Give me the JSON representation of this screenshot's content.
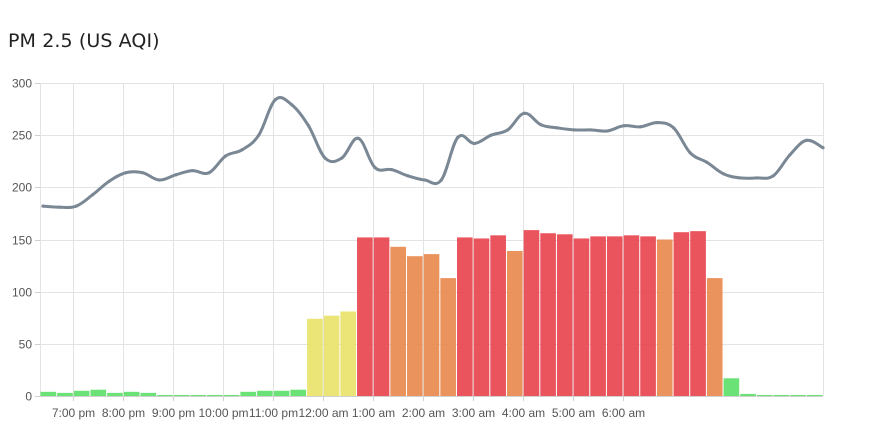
{
  "chart_data": {
    "title": "PM 2.5 (US AQI)",
    "type": "bar+line",
    "ylim": [
      0,
      300
    ],
    "yticks": [
      0,
      50,
      100,
      150,
      200,
      250,
      300
    ],
    "xticks": [
      "7:00 pm",
      "8:00 pm",
      "9:00 pm",
      "10:00 pm",
      "11:00 pm",
      "12:00 am",
      "1:00 am",
      "2:00 am",
      "3:00 am",
      "4:00 am",
      "5:00 am",
      "6:00 am"
    ],
    "grid": true,
    "colors": {
      "good": "#5ee06a",
      "moderate": "#e8e36a",
      "sensitive": "#e98a4f",
      "unhealthy": "#e8474f",
      "line": "#7a8794",
      "grid": "#e3e3e3",
      "axis": "#cfcfcf"
    },
    "bars": [
      4,
      3,
      5,
      6,
      3,
      4,
      3,
      1,
      1,
      1,
      1,
      1,
      4,
      5,
      5,
      6,
      74,
      77,
      81,
      152,
      152,
      143,
      134,
      136,
      113,
      152,
      151,
      154,
      139,
      159,
      156,
      155,
      151,
      153,
      153,
      154,
      153,
      150,
      157,
      158,
      113,
      17,
      2,
      1,
      1,
      1,
      1
    ],
    "line": [
      182,
      181,
      182,
      193,
      206,
      214,
      214,
      207,
      212,
      216,
      214,
      230,
      236,
      250,
      284,
      279,
      259,
      228,
      228,
      247,
      219,
      217,
      211,
      207,
      207,
      248,
      242,
      250,
      255,
      271,
      260,
      257,
      255,
      255,
      254,
      259,
      258,
      262,
      257,
      233,
      224,
      213,
      209,
      209,
      211,
      231,
      245,
      238
    ]
  }
}
